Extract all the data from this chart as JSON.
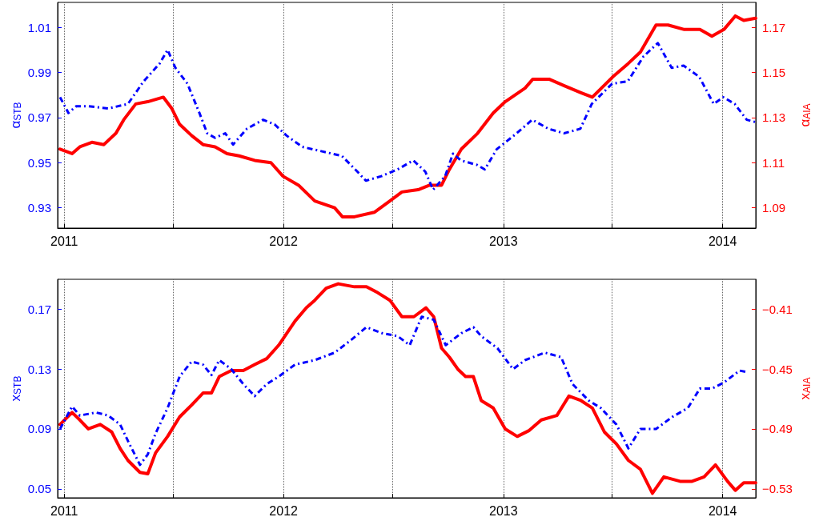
{
  "chart_data": [
    {
      "type": "line",
      "ylabel": "α$_{STB}$",
      "y2label": "α$_{AIA}$",
      "grid": "x",
      "xlim": [
        "2010-12-21",
        "2014-02-25"
      ],
      "xticks": [
        {
          "value": "2011-01-01",
          "label": "2011"
        },
        {
          "value": "2011-07-01",
          "label": null
        },
        {
          "value": "2012-01-01",
          "label": "2012"
        },
        {
          "value": "2012-07-01",
          "label": null
        },
        {
          "value": "2013-01-01",
          "label": "2013"
        },
        {
          "value": "2013-07-01",
          "label": null
        },
        {
          "value": "2014-01-01",
          "label": "2014"
        }
      ],
      "ylim": [
        0.921,
        1.021
      ],
      "yticks": [
        0.93,
        0.95,
        0.97,
        0.99,
        1.01
      ],
      "y2lim": [
        1.081,
        1.181
      ],
      "y2ticks": [
        1.09,
        1.11,
        1.13,
        1.15,
        1.17
      ],
      "series": [
        {
          "color": "#0000ff",
          "line_style": "dashed",
          "x": [
            "2010-12-25",
            "2011-01-08",
            "2011-01-21",
            "2011-02-10",
            "2011-03-15",
            "2011-04-17",
            "2011-05-13",
            "2011-06-09",
            "2011-06-22",
            "2011-07-05",
            "2011-07-25",
            "2011-08-14",
            "2011-08-27",
            "2011-09-09",
            "2011-09-26",
            "2011-10-09",
            "2011-11-01",
            "2011-11-28",
            "2011-12-17",
            "2012-01-06",
            "2012-02-01",
            "2012-03-05",
            "2012-04-07",
            "2012-05-03",
            "2012-05-17",
            "2012-06-12",
            "2012-07-09",
            "2012-08-04",
            "2012-08-24",
            "2012-09-06",
            "2012-09-26",
            "2012-10-09",
            "2012-10-22",
            "2012-11-18",
            "2012-12-01",
            "2012-12-21",
            "2013-01-23",
            "2013-02-18",
            "2013-03-17",
            "2013-04-12",
            "2013-05-09",
            "2013-05-28",
            "2013-07-01",
            "2013-07-27",
            "2013-08-22",
            "2013-09-15",
            "2013-10-08",
            "2013-10-28",
            "2013-11-23",
            "2013-12-17",
            "2014-01-02",
            "2014-01-21",
            "2014-02-10",
            "2014-02-24"
          ],
          "values": [
            0.979,
            0.972,
            0.975,
            0.975,
            0.974,
            0.976,
            0.986,
            0.994,
            1.0,
            0.992,
            0.985,
            0.972,
            0.963,
            0.961,
            0.963,
            0.958,
            0.965,
            0.969,
            0.967,
            0.962,
            0.957,
            0.955,
            0.953,
            0.946,
            0.942,
            0.944,
            0.947,
            0.951,
            0.946,
            0.938,
            0.944,
            0.954,
            0.951,
            0.949,
            0.947,
            0.956,
            0.963,
            0.969,
            0.965,
            0.963,
            0.965,
            0.976,
            0.985,
            0.986,
            0.997,
            1.003,
            0.992,
            0.993,
            0.988,
            0.976,
            0.979,
            0.976,
            0.969,
            0.968
          ]
        },
        {
          "color": "#ff0000",
          "line_style": "solid",
          "axis": "y2",
          "x": [
            "2010-12-25",
            "2011-01-14",
            "2011-01-27",
            "2011-02-16",
            "2011-03-08",
            "2011-03-28",
            "2011-04-10",
            "2011-04-30",
            "2011-05-20",
            "2011-06-15",
            "2011-06-29",
            "2011-07-12",
            "2011-08-01",
            "2011-08-20",
            "2011-09-09",
            "2011-09-29",
            "2011-10-19",
            "2011-11-14",
            "2011-12-11",
            "2011-12-31",
            "2012-01-26",
            "2012-02-22",
            "2012-03-26",
            "2012-04-08",
            "2012-04-28",
            "2012-05-31",
            "2012-06-26",
            "2012-07-16",
            "2012-08-12",
            "2012-08-31",
            "2012-09-20",
            "2012-10-03",
            "2012-10-23",
            "2012-11-19",
            "2012-12-15",
            "2013-01-04",
            "2013-02-06",
            "2013-02-19",
            "2013-03-18",
            "2013-04-13",
            "2013-05-10",
            "2013-05-29",
            "2013-07-02",
            "2013-07-28",
            "2013-08-17",
            "2013-09-12",
            "2013-10-02",
            "2013-10-29",
            "2013-11-24",
            "2013-12-14",
            "2014-01-03",
            "2014-01-22",
            "2014-02-05",
            "2014-02-25"
          ],
          "values": [
            1.116,
            1.114,
            1.117,
            1.119,
            1.118,
            1.123,
            1.129,
            1.136,
            1.137,
            1.139,
            1.134,
            1.127,
            1.122,
            1.118,
            1.117,
            1.114,
            1.113,
            1.111,
            1.11,
            1.104,
            1.1,
            1.093,
            1.09,
            1.086,
            1.086,
            1.088,
            1.093,
            1.097,
            1.098,
            1.1,
            1.1,
            1.107,
            1.116,
            1.123,
            1.132,
            1.137,
            1.143,
            1.147,
            1.147,
            1.144,
            1.141,
            1.139,
            1.148,
            1.154,
            1.159,
            1.171,
            1.171,
            1.169,
            1.169,
            1.166,
            1.169,
            1.175,
            1.173,
            1.174
          ]
        }
      ]
    },
    {
      "type": "line",
      "ylabel": "x$_{STB}$",
      "y2label": "x$_{AIA}$",
      "grid": "x",
      "xlim": [
        "2010-12-21",
        "2014-02-25"
      ],
      "xticks": [
        {
          "value": "2011-01-01",
          "label": "2011"
        },
        {
          "value": "2011-07-01",
          "label": null
        },
        {
          "value": "2012-01-01",
          "label": "2012"
        },
        {
          "value": "2012-07-01",
          "label": null
        },
        {
          "value": "2013-01-01",
          "label": "2013"
        },
        {
          "value": "2013-07-01",
          "label": null
        },
        {
          "value": "2014-01-01",
          "label": "2014"
        }
      ],
      "ylim": [
        0.044,
        0.19
      ],
      "yticks": [
        0.05,
        0.09,
        0.13,
        0.17
      ],
      "y2lim": [
        -0.536,
        -0.39
      ],
      "y2ticks": [
        {
          "value": -0.53,
          "label": "−0.53"
        },
        {
          "value": -0.49,
          "label": "−0.49"
        },
        {
          "value": -0.45,
          "label": "−0.45"
        },
        {
          "value": -0.41,
          "label": "−0.41"
        }
      ],
      "series": [
        {
          "color": "#0000ff",
          "line_style": "dashed",
          "x": [
            "2010-12-25",
            "2011-01-14",
            "2011-01-27",
            "2011-02-23",
            "2011-03-15",
            "2011-04-04",
            "2011-04-17",
            "2011-05-07",
            "2011-05-20",
            "2011-06-02",
            "2011-06-22",
            "2011-07-12",
            "2011-08-01",
            "2011-08-20",
            "2011-09-03",
            "2011-09-16",
            "2011-10-06",
            "2011-10-26",
            "2011-11-14",
            "2011-12-04",
            "2011-12-24",
            "2012-01-20",
            "2012-02-22",
            "2012-03-26",
            "2012-04-21",
            "2012-05-18",
            "2012-06-13",
            "2012-07-09",
            "2012-07-29",
            "2012-08-18",
            "2012-09-07",
            "2012-09-27",
            "2012-10-23",
            "2012-11-12",
            "2012-11-25",
            "2012-12-22",
            "2013-01-17",
            "2013-02-06",
            "2013-03-11",
            "2013-04-07",
            "2013-04-26",
            "2013-05-23",
            "2013-06-12",
            "2013-07-08",
            "2013-07-28",
            "2013-08-17",
            "2013-09-12",
            "2013-10-09",
            "2013-11-04",
            "2013-11-24",
            "2013-12-14",
            "2014-01-03",
            "2014-01-29",
            "2014-02-11"
          ],
          "values": [
            0.09,
            0.105,
            0.099,
            0.101,
            0.099,
            0.093,
            0.082,
            0.066,
            0.073,
            0.087,
            0.104,
            0.125,
            0.135,
            0.133,
            0.126,
            0.136,
            0.13,
            0.12,
            0.112,
            0.12,
            0.125,
            0.133,
            0.136,
            0.141,
            0.149,
            0.158,
            0.154,
            0.152,
            0.146,
            0.165,
            0.163,
            0.146,
            0.154,
            0.158,
            0.152,
            0.144,
            0.13,
            0.136,
            0.141,
            0.138,
            0.12,
            0.109,
            0.104,
            0.093,
            0.077,
            0.09,
            0.09,
            0.098,
            0.104,
            0.117,
            0.117,
            0.121,
            0.129,
            0.128
          ]
        },
        {
          "color": "#ff0000",
          "line_style": "solid",
          "axis": "y2",
          "x": [
            "2010-12-25",
            "2011-01-14",
            "2011-01-27",
            "2011-02-10",
            "2011-03-02",
            "2011-03-21",
            "2011-04-04",
            "2011-04-17",
            "2011-05-07",
            "2011-05-20",
            "2011-06-02",
            "2011-06-22",
            "2011-07-12",
            "2011-08-01",
            "2011-08-20",
            "2011-09-03",
            "2011-09-16",
            "2011-10-06",
            "2011-10-26",
            "2011-11-14",
            "2011-12-04",
            "2011-12-24",
            "2012-01-20",
            "2012-02-08",
            "2012-02-22",
            "2012-03-12",
            "2012-04-01",
            "2012-04-28",
            "2012-05-18",
            "2012-06-06",
            "2012-06-26",
            "2012-07-16",
            "2012-08-05",
            "2012-08-25",
            "2012-09-07",
            "2012-09-20",
            "2012-10-03",
            "2012-10-17",
            "2012-10-30",
            "2012-11-12",
            "2012-11-25",
            "2012-12-15",
            "2013-01-04",
            "2013-01-24",
            "2013-02-13",
            "2013-03-05",
            "2013-03-31",
            "2013-04-20",
            "2013-05-10",
            "2013-05-29",
            "2013-06-18",
            "2013-07-08",
            "2013-07-28",
            "2013-08-17",
            "2013-09-06",
            "2013-09-25",
            "2013-10-22",
            "2013-11-11",
            "2013-12-01",
            "2013-12-20",
            "2014-01-09",
            "2014-01-22",
            "2014-02-05",
            "2014-02-25"
          ],
          "values": [
            -0.487,
            -0.479,
            -0.484,
            -0.49,
            -0.487,
            -0.492,
            -0.503,
            -0.511,
            -0.519,
            -0.52,
            -0.506,
            -0.495,
            -0.482,
            -0.474,
            -0.466,
            -0.466,
            -0.455,
            -0.451,
            -0.451,
            -0.447,
            -0.443,
            -0.434,
            -0.418,
            -0.409,
            -0.404,
            -0.396,
            -0.393,
            -0.395,
            -0.395,
            -0.399,
            -0.404,
            -0.415,
            -0.415,
            -0.409,
            -0.415,
            -0.436,
            -0.442,
            -0.45,
            -0.455,
            -0.455,
            -0.471,
            -0.476,
            -0.49,
            -0.495,
            -0.491,
            -0.484,
            -0.481,
            -0.468,
            -0.471,
            -0.476,
            -0.492,
            -0.5,
            -0.511,
            -0.517,
            -0.533,
            -0.522,
            -0.525,
            -0.525,
            -0.522,
            -0.514,
            -0.525,
            -0.531,
            -0.526,
            -0.526
          ]
        }
      ]
    }
  ]
}
